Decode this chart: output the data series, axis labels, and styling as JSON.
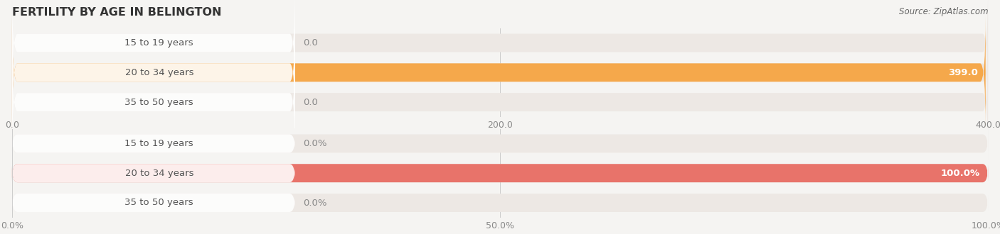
{
  "title": "FERTILITY BY AGE IN BELINGTON",
  "source": "Source: ZipAtlas.com",
  "top_chart": {
    "categories": [
      "15 to 19 years",
      "20 to 34 years",
      "35 to 50 years"
    ],
    "values": [
      0.0,
      399.0,
      0.0
    ],
    "xlim": [
      0,
      400.0
    ],
    "xticks": [
      0.0,
      200.0,
      400.0
    ],
    "bar_color": "#F5A84B",
    "bar_bg_color": "#EDE8E4",
    "label_pill_color": "#FFFFFF",
    "label_text_color": "#555555",
    "value_label_color_inside": "#FFFFFF",
    "value_label_color_outside": "#888888"
  },
  "bottom_chart": {
    "categories": [
      "15 to 19 years",
      "20 to 34 years",
      "35 to 50 years"
    ],
    "values": [
      0.0,
      100.0,
      0.0
    ],
    "xlim": [
      0,
      100.0
    ],
    "xticks": [
      0.0,
      50.0,
      100.0
    ],
    "bar_color": "#E8736A",
    "bar_bg_color": "#EDE8E4",
    "label_pill_color": "#FFFFFF",
    "label_text_color": "#555555",
    "value_label_color_inside": "#FFFFFF",
    "value_label_color_outside": "#888888"
  },
  "bg_color": "#F5F4F2",
  "label_font_size": 9.5,
  "tick_font_size": 9,
  "title_font_size": 11.5
}
